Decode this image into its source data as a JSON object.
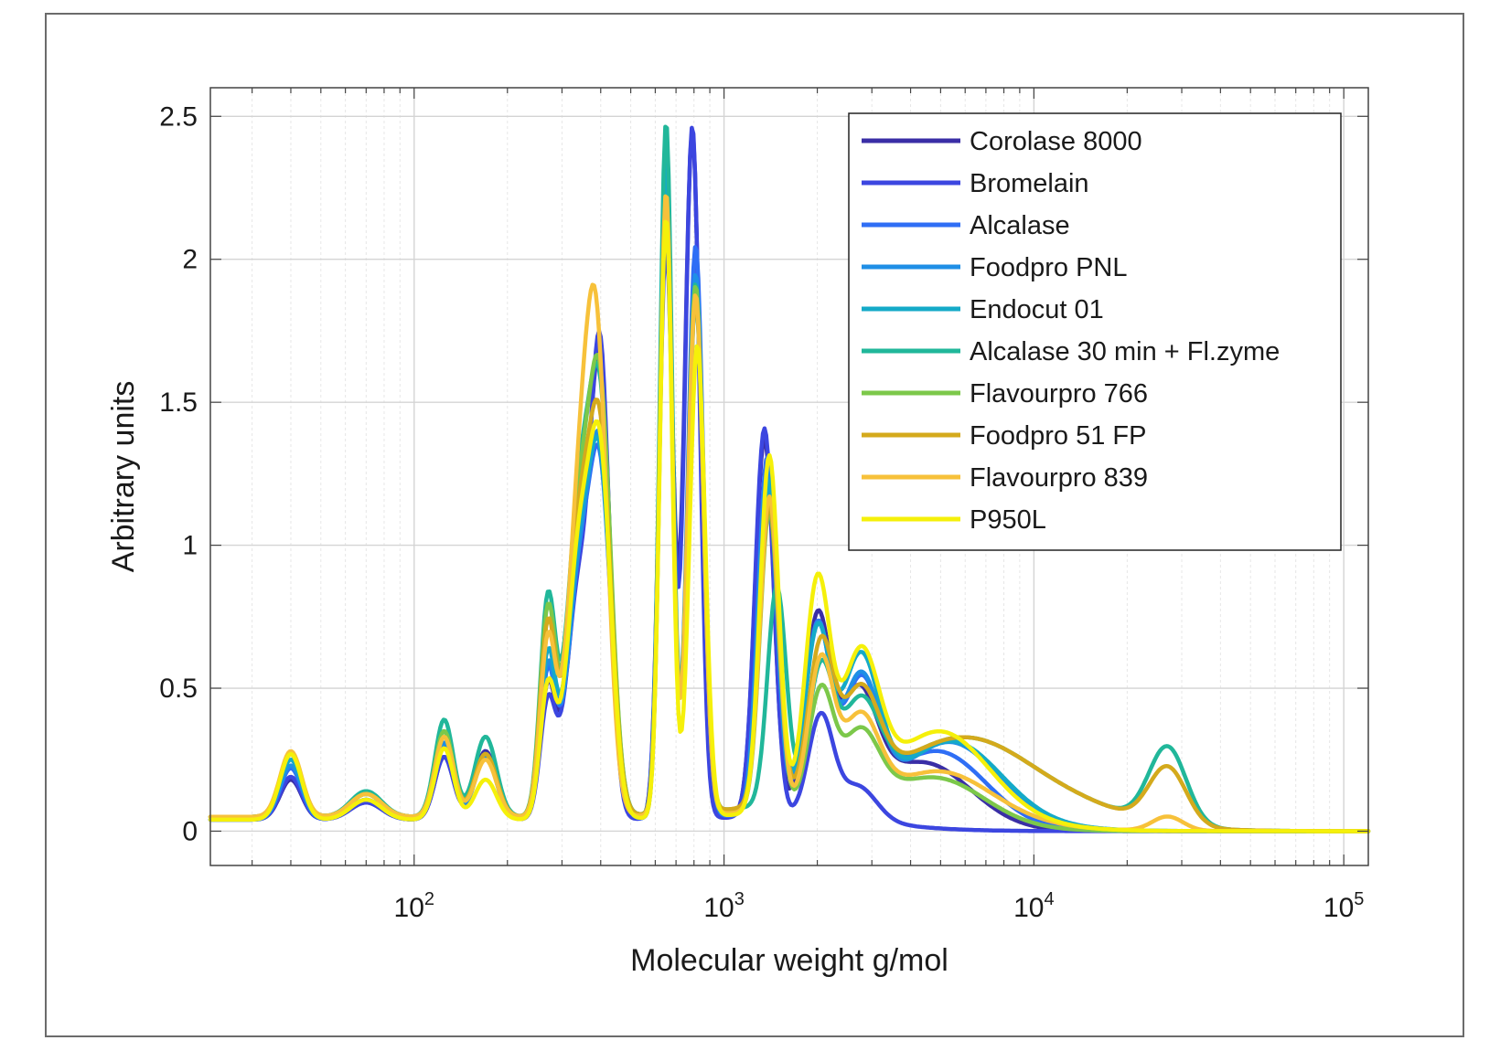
{
  "chart_data": {
    "type": "line",
    "title": "",
    "xlabel": "Molecular weight g/mol",
    "ylabel": "Arbitrary units",
    "xscale": "log",
    "xlim": [
      22,
      120000
    ],
    "ylim": [
      -0.12,
      2.6
    ],
    "yticks": [
      {
        "value": 0,
        "label": "0"
      },
      {
        "value": 0.5,
        "label": "0.5"
      },
      {
        "value": 1,
        "label": "1"
      },
      {
        "value": 1.5,
        "label": "1.5"
      },
      {
        "value": 2,
        "label": "2"
      },
      {
        "value": 2.5,
        "label": "2.5"
      }
    ],
    "xticks": [
      {
        "value": 100,
        "base": "10",
        "exp": "2"
      },
      {
        "value": 1000,
        "base": "10",
        "exp": "3"
      },
      {
        "value": 10000,
        "base": "10",
        "exp": "4"
      },
      {
        "value": 100000,
        "base": "10",
        "exp": "5"
      }
    ],
    "grid": true,
    "legend_position": "top-right",
    "series": [
      {
        "name": "Corolase 8000",
        "color": "#3a2ea6",
        "peaks": [
          [
            40,
            0.14,
            0.035
          ],
          [
            70,
            0.06,
            0.05
          ],
          [
            125,
            0.22,
            0.03
          ],
          [
            170,
            0.24,
            0.035
          ],
          [
            270,
            0.45,
            0.025
          ],
          [
            340,
            0.8,
            0.04
          ],
          [
            400,
            1.45,
            0.032
          ],
          [
            650,
            2.05,
            0.022
          ],
          [
            790,
            2.4,
            0.025
          ],
          [
            1350,
            1.32,
            0.03
          ],
          [
            2000,
            0.66,
            0.04
          ],
          [
            2700,
            0.38,
            0.06
          ],
          [
            4500,
            0.2,
            0.15
          ]
        ],
        "base": 0.04,
        "base_end": 4500,
        "tail": 0.04
      },
      {
        "name": "Bromelain",
        "color": "#3c46e0",
        "peaks": [
          [
            40,
            0.15,
            0.035
          ],
          [
            70,
            0.06,
            0.05
          ],
          [
            125,
            0.22,
            0.03
          ],
          [
            170,
            0.23,
            0.035
          ],
          [
            270,
            0.4,
            0.025
          ],
          [
            340,
            0.8,
            0.04
          ],
          [
            400,
            1.52,
            0.03
          ],
          [
            650,
            2.0,
            0.022
          ],
          [
            790,
            2.42,
            0.024
          ],
          [
            1350,
            1.36,
            0.03
          ],
          [
            2050,
            0.35,
            0.04
          ],
          [
            2700,
            0.12,
            0.06
          ]
        ],
        "base": 0.04,
        "base_end": 3000,
        "tail": 0.03
      },
      {
        "name": "Alcalase",
        "color": "#2f6ef5",
        "peaks": [
          [
            40,
            0.18,
            0.035
          ],
          [
            70,
            0.07,
            0.05
          ],
          [
            125,
            0.26,
            0.03
          ],
          [
            170,
            0.22,
            0.035
          ],
          [
            270,
            0.5,
            0.025
          ],
          [
            340,
            0.8,
            0.04
          ],
          [
            400,
            1.1,
            0.035
          ],
          [
            650,
            2.25,
            0.02
          ],
          [
            810,
            2.0,
            0.025
          ],
          [
            1380,
            1.25,
            0.03
          ],
          [
            2000,
            0.63,
            0.04
          ],
          [
            2750,
            0.42,
            0.06
          ],
          [
            5000,
            0.22,
            0.15
          ]
        ],
        "base": 0.04,
        "base_end": 6000,
        "tail": 0.05
      },
      {
        "name": "Foodpro PNL",
        "color": "#1f8fe6",
        "peaks": [
          [
            40,
            0.19,
            0.035
          ],
          [
            70,
            0.07,
            0.05
          ],
          [
            125,
            0.27,
            0.03
          ],
          [
            170,
            0.22,
            0.035
          ],
          [
            270,
            0.52,
            0.025
          ],
          [
            340,
            0.8,
            0.04
          ],
          [
            400,
            1.15,
            0.035
          ],
          [
            650,
            2.2,
            0.02
          ],
          [
            810,
            1.9,
            0.025
          ],
          [
            1380,
            1.2,
            0.03
          ],
          [
            2000,
            0.62,
            0.04
          ],
          [
            2750,
            0.44,
            0.06
          ],
          [
            5500,
            0.24,
            0.15
          ]
        ],
        "base": 0.04,
        "base_end": 7000,
        "tail": 0.06
      },
      {
        "name": "Endocut 01",
        "color": "#15aac8",
        "peaks": [
          [
            40,
            0.2,
            0.035
          ],
          [
            70,
            0.08,
            0.05
          ],
          [
            125,
            0.3,
            0.03
          ],
          [
            170,
            0.22,
            0.035
          ],
          [
            270,
            0.55,
            0.025
          ],
          [
            340,
            0.85,
            0.04
          ],
          [
            400,
            1.1,
            0.035
          ],
          [
            650,
            2.3,
            0.02
          ],
          [
            810,
            1.8,
            0.025
          ],
          [
            1400,
            1.15,
            0.03
          ],
          [
            2000,
            0.6,
            0.04
          ],
          [
            2750,
            0.5,
            0.06
          ],
          [
            5500,
            0.22,
            0.15
          ]
        ],
        "base": 0.05,
        "base_end": 9000,
        "tail": 0.06
      },
      {
        "name": "Alcalase 30 min + Fl.zyme",
        "color": "#21b79a",
        "peaks": [
          [
            40,
            0.22,
            0.035
          ],
          [
            70,
            0.09,
            0.05
          ],
          [
            125,
            0.34,
            0.03
          ],
          [
            170,
            0.28,
            0.035
          ],
          [
            270,
            0.74,
            0.025
          ],
          [
            340,
            1.05,
            0.04
          ],
          [
            400,
            1.3,
            0.035
          ],
          [
            650,
            2.42,
            0.02
          ],
          [
            810,
            1.85,
            0.025
          ],
          [
            1480,
            0.76,
            0.03
          ],
          [
            2050,
            0.44,
            0.04
          ],
          [
            2750,
            0.3,
            0.06
          ],
          [
            6000,
            0.18,
            0.2
          ],
          [
            27000,
            0.27,
            0.06
          ]
        ],
        "base": 0.05,
        "base_end": 22000,
        "tail": 0.1
      },
      {
        "name": "Flavourpro 766",
        "color": "#7cc84a",
        "peaks": [
          [
            40,
            0.22,
            0.035
          ],
          [
            70,
            0.08,
            0.05
          ],
          [
            125,
            0.3,
            0.03
          ],
          [
            170,
            0.22,
            0.035
          ],
          [
            270,
            0.7,
            0.025
          ],
          [
            340,
            1.0,
            0.04
          ],
          [
            400,
            1.35,
            0.035
          ],
          [
            650,
            2.15,
            0.02
          ],
          [
            810,
            1.85,
            0.025
          ],
          [
            1400,
            1.05,
            0.03
          ],
          [
            2050,
            0.4,
            0.04
          ],
          [
            2750,
            0.25,
            0.06
          ],
          [
            5000,
            0.12,
            0.15
          ]
        ],
        "base": 0.05,
        "base_end": 6000,
        "tail": 0.05
      },
      {
        "name": "Foodpro 51 FP",
        "color": "#d4aa1c",
        "peaks": [
          [
            40,
            0.22,
            0.035
          ],
          [
            70,
            0.08,
            0.05
          ],
          [
            125,
            0.28,
            0.03
          ],
          [
            170,
            0.22,
            0.035
          ],
          [
            270,
            0.65,
            0.025
          ],
          [
            340,
            0.95,
            0.04
          ],
          [
            400,
            1.2,
            0.035
          ],
          [
            650,
            2.15,
            0.02
          ],
          [
            810,
            1.8,
            0.025
          ],
          [
            1400,
            1.05,
            0.03
          ],
          [
            2050,
            0.52,
            0.04
          ],
          [
            2750,
            0.34,
            0.06
          ],
          [
            6000,
            0.18,
            0.2
          ],
          [
            27000,
            0.2,
            0.06
          ]
        ],
        "base": 0.05,
        "base_end": 22000,
        "tail": 0.1
      },
      {
        "name": "Flavourpro 839",
        "color": "#f7c13a",
        "peaks": [
          [
            40,
            0.23,
            0.035
          ],
          [
            70,
            0.08,
            0.05
          ],
          [
            125,
            0.28,
            0.03
          ],
          [
            170,
            0.2,
            0.035
          ],
          [
            270,
            0.6,
            0.025
          ],
          [
            340,
            1.0,
            0.04
          ],
          [
            390,
            1.45,
            0.035
          ],
          [
            650,
            2.18,
            0.02
          ],
          [
            810,
            1.82,
            0.025
          ],
          [
            1400,
            1.1,
            0.03
          ],
          [
            2050,
            0.5,
            0.04
          ],
          [
            2750,
            0.3,
            0.06
          ],
          [
            5000,
            0.12,
            0.15
          ],
          [
            27000,
            0.05,
            0.05
          ]
        ],
        "base": 0.05,
        "base_end": 9000,
        "tail": 0.05
      },
      {
        "name": "P950L",
        "color": "#f5f00a",
        "peaks": [
          [
            40,
            0.23,
            0.035
          ],
          [
            70,
            0.07,
            0.05
          ],
          [
            125,
            0.25,
            0.03
          ],
          [
            170,
            0.14,
            0.035
          ],
          [
            270,
            0.45,
            0.025
          ],
          [
            340,
            0.9,
            0.04
          ],
          [
            400,
            1.15,
            0.035
          ],
          [
            650,
            2.1,
            0.02
          ],
          [
            820,
            1.65,
            0.025
          ],
          [
            1400,
            1.25,
            0.03
          ],
          [
            2000,
            0.78,
            0.04
          ],
          [
            2750,
            0.5,
            0.06
          ],
          [
            5000,
            0.26,
            0.15
          ]
        ],
        "base": 0.04,
        "base_end": 9000,
        "tail": 0.06
      }
    ]
  }
}
